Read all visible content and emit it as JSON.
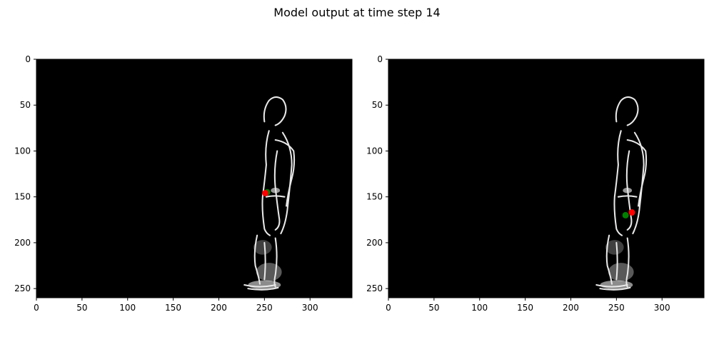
{
  "suptitle": "Model output at time step 14",
  "chart_data": [
    {
      "type": "scatter",
      "panel": "left",
      "background": "grayscale event-camera image of a walking person (white edges on black)",
      "xlim": [
        0,
        346
      ],
      "ylim": [
        260,
        0
      ],
      "xticks": [
        0,
        50,
        100,
        150,
        200,
        250,
        300
      ],
      "yticks": [
        0,
        50,
        100,
        150,
        200,
        250
      ],
      "points": [
        {
          "color": "#008000",
          "x": 253,
          "y": 145
        },
        {
          "color": "#ff0000",
          "x": 251,
          "y": 146
        }
      ]
    },
    {
      "type": "scatter",
      "panel": "right",
      "background": "grayscale event-camera image of a walking person (white edges on black)",
      "xlim": [
        0,
        346
      ],
      "ylim": [
        260,
        0
      ],
      "xticks": [
        0,
        50,
        100,
        150,
        200,
        250,
        300
      ],
      "yticks": [
        0,
        50,
        100,
        150,
        200,
        250
      ],
      "points": [
        {
          "color": "#008000",
          "x": 260,
          "y": 170
        },
        {
          "color": "#ff0000",
          "x": 267,
          "y": 167
        }
      ]
    }
  ]
}
